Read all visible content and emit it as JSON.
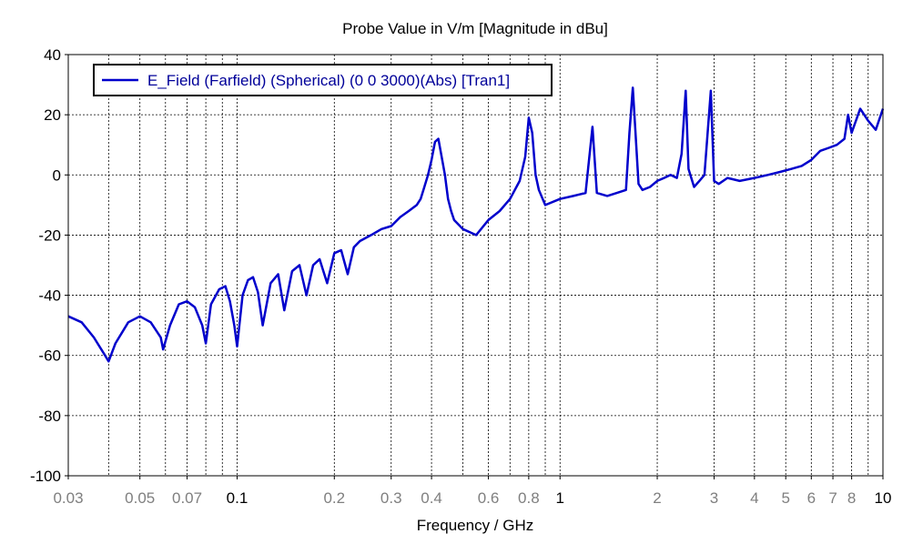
{
  "chart_data": {
    "type": "line",
    "title": "Probe Value in V/m [Magnitude in dBu]",
    "xlabel": "Frequency / GHz",
    "ylabel": "",
    "x_scale": "log",
    "xlim": [
      0.03,
      10
    ],
    "ylim": [
      -100,
      40
    ],
    "grid": true,
    "legend_position": "top-left",
    "x_ticks": [
      {
        "value": 0.03,
        "label": "0.03",
        "major": false
      },
      {
        "value": 0.05,
        "label": "0.05",
        "major": false
      },
      {
        "value": 0.07,
        "label": "0.07",
        "major": false
      },
      {
        "value": 0.1,
        "label": "0.1",
        "major": true
      },
      {
        "value": 0.2,
        "label": "0.2",
        "major": false
      },
      {
        "value": 0.3,
        "label": "0.3",
        "major": false
      },
      {
        "value": 0.4,
        "label": "0.4",
        "major": false
      },
      {
        "value": 0.6,
        "label": "0.6",
        "major": false
      },
      {
        "value": 0.8,
        "label": "0.8",
        "major": false
      },
      {
        "value": 1,
        "label": "1",
        "major": true
      },
      {
        "value": 2,
        "label": "2",
        "major": false
      },
      {
        "value": 3,
        "label": "3",
        "major": false
      },
      {
        "value": 4,
        "label": "4",
        "major": false
      },
      {
        "value": 5,
        "label": "5",
        "major": false
      },
      {
        "value": 6,
        "label": "6",
        "major": false
      },
      {
        "value": 7,
        "label": "7",
        "major": false
      },
      {
        "value": 8,
        "label": "8",
        "major": false
      },
      {
        "value": 10,
        "label": "10",
        "major": true
      }
    ],
    "x_grid_values": [
      0.04,
      0.05,
      0.06,
      0.07,
      0.08,
      0.09,
      0.1,
      0.2,
      0.3,
      0.4,
      0.5,
      0.6,
      0.7,
      0.8,
      0.9,
      1,
      2,
      3,
      4,
      5,
      6,
      7,
      8,
      9
    ],
    "y_ticks": [
      {
        "value": -100,
        "label": "-100"
      },
      {
        "value": -80,
        "label": "-80"
      },
      {
        "value": -60,
        "label": "-60"
      },
      {
        "value": -40,
        "label": "-40"
      },
      {
        "value": -20,
        "label": "-20"
      },
      {
        "value": 0,
        "label": "0"
      },
      {
        "value": 20,
        "label": "20"
      },
      {
        "value": 40,
        "label": "40"
      }
    ],
    "series": [
      {
        "name": "E_Field (Farfield) (Spherical) (0 0 3000)(Abs) [Tran1]",
        "color": "#0000CC",
        "x": [
          0.03,
          0.033,
          0.036,
          0.039,
          0.04,
          0.042,
          0.046,
          0.05,
          0.054,
          0.058,
          0.059,
          0.062,
          0.066,
          0.07,
          0.074,
          0.078,
          0.08,
          0.083,
          0.088,
          0.092,
          0.095,
          0.098,
          0.1,
          0.104,
          0.108,
          0.112,
          0.116,
          0.12,
          0.127,
          0.134,
          0.14,
          0.148,
          0.156,
          0.164,
          0.172,
          0.18,
          0.19,
          0.2,
          0.21,
          0.22,
          0.23,
          0.24,
          0.26,
          0.28,
          0.3,
          0.32,
          0.34,
          0.36,
          0.37,
          0.38,
          0.39,
          0.4,
          0.41,
          0.42,
          0.43,
          0.44,
          0.45,
          0.46,
          0.47,
          0.5,
          0.55,
          0.6,
          0.65,
          0.7,
          0.75,
          0.78,
          0.8,
          0.82,
          0.84,
          0.86,
          0.9,
          1.0,
          1.1,
          1.2,
          1.26,
          1.3,
          1.4,
          1.5,
          1.6,
          1.64,
          1.68,
          1.75,
          1.8,
          1.9,
          2.0,
          2.1,
          2.2,
          2.3,
          2.38,
          2.45,
          2.5,
          2.6,
          2.7,
          2.8,
          2.93,
          3.0,
          3.1,
          3.3,
          3.6,
          4.0,
          4.4,
          4.8,
          5.2,
          5.6,
          6.0,
          6.4,
          6.8,
          7.2,
          7.6,
          7.8,
          8.0,
          8.5,
          9.0,
          9.5,
          10.0
        ],
        "y": [
          -47,
          -49,
          -54,
          -60,
          -62,
          -56,
          -49,
          -47,
          -49,
          -54,
          -58,
          -50,
          -43,
          -42,
          -44,
          -50,
          -56,
          -43,
          -38,
          -37,
          -42,
          -50,
          -57,
          -40,
          -35,
          -34,
          -39,
          -50,
          -36,
          -33,
          -45,
          -32,
          -30,
          -40,
          -30,
          -28,
          -36,
          -26,
          -25,
          -33,
          -24,
          -22,
          -20,
          -18,
          -17,
          -14,
          -12,
          -10,
          -8,
          -4,
          0,
          5,
          11,
          12,
          6,
          0,
          -8,
          -12,
          -15,
          -18,
          -20,
          -15,
          -12,
          -8,
          -2,
          6,
          19,
          14,
          0,
          -5,
          -10,
          -8,
          -7,
          -6,
          16,
          -6,
          -7,
          -6,
          -5,
          14,
          29,
          -3,
          -5,
          -4,
          -2,
          -1,
          0,
          -1,
          7,
          28,
          2,
          -4,
          -2,
          0,
          28,
          -2,
          -3,
          -1,
          -2,
          -1,
          0,
          1,
          2,
          3,
          5,
          8,
          9,
          10,
          12,
          20,
          14,
          22,
          18,
          15,
          22
        ]
      }
    ]
  }
}
